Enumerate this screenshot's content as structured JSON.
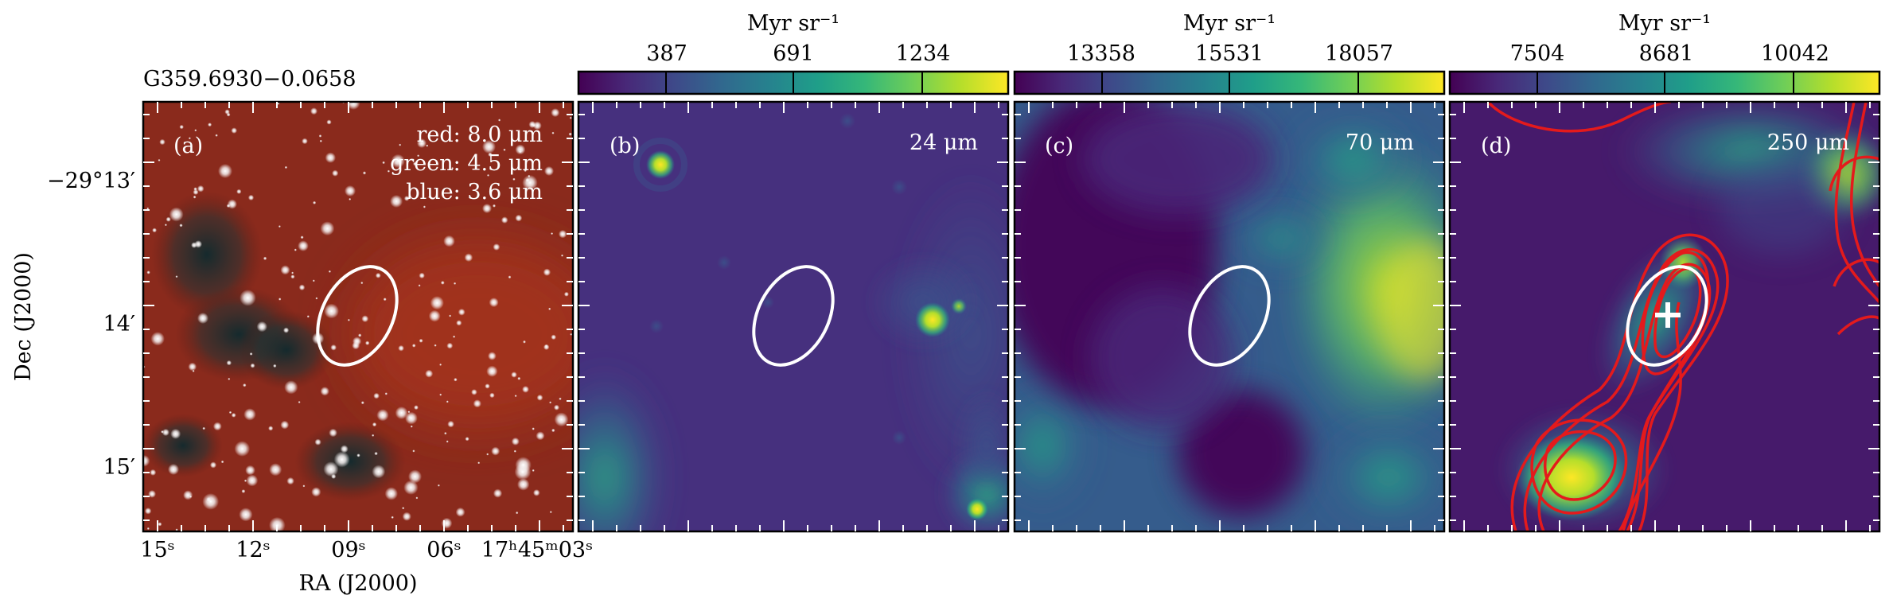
{
  "figure": {
    "source_name": "G359.6930−0.0658",
    "ylabel": "Dec (J2000)",
    "xlabel": "RA (J2000)",
    "dec_ticks": [
      "−29°13′",
      "14′",
      "15′"
    ],
    "ra_ticks": [
      "15ˢ",
      "12ˢ",
      "09ˢ",
      "06ˢ",
      "17ʰ45ᵐ03ˢ"
    ],
    "colorbar_unit": "Myr sr⁻¹",
    "colormap": [
      "#440154",
      "#482878",
      "#3e4989",
      "#31688e",
      "#26828e",
      "#1f9e89",
      "#35b779",
      "#6ece58",
      "#b5de2b",
      "#fde725"
    ],
    "ellipse_color": "#ffffff",
    "contour_color": "#e41a1c",
    "panels": [
      {
        "letter": "(a)",
        "wavelength_lines": [
          "red: 8.0 μm",
          "green: 4.5 μm",
          "blue: 3.6 μm"
        ],
        "composite": "rgb"
      },
      {
        "letter": "(b)",
        "wavelength_lines": [
          "24 μm"
        ],
        "colorbar_ticks": [
          "387",
          "691",
          "1234"
        ]
      },
      {
        "letter": "(c)",
        "wavelength_lines": [
          "70 μm"
        ],
        "colorbar_ticks": [
          "13358",
          "15531",
          "18057"
        ]
      },
      {
        "letter": "(d)",
        "wavelength_lines": [
          "250 μm"
        ],
        "colorbar_ticks": [
          "7504",
          "8681",
          "10042"
        ],
        "has_contours": true,
        "has_cross": true
      }
    ]
  }
}
